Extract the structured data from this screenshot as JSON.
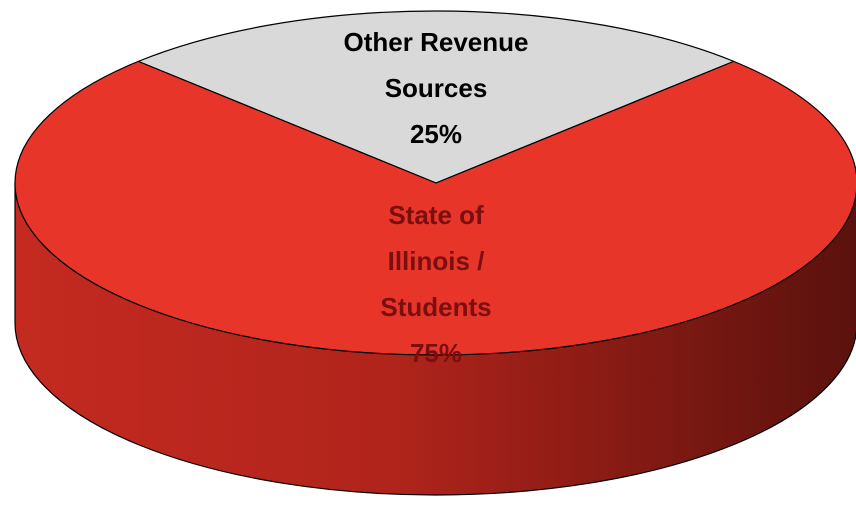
{
  "chart_data": {
    "type": "pie",
    "categories": [
      "Other Revenue Sources",
      "State of Illinois / Students"
    ],
    "values": [
      25,
      75
    ],
    "value_labels": [
      "25%",
      "75%"
    ],
    "colors": [
      "#d9d9d9",
      "#e8352a"
    ],
    "label_colors": [
      "#000000",
      "#7a0f0f"
    ],
    "three_d": true
  }
}
